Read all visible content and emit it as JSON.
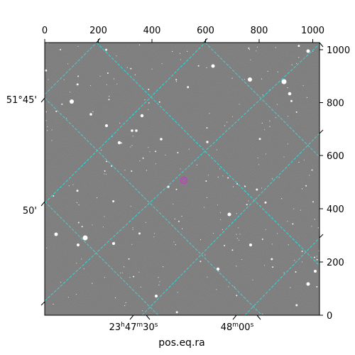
{
  "image": {
    "description_kind": "astronomical sky image with WCS grid",
    "background_color": "#7a7a7a",
    "grid_color": "#38d6d6",
    "marker_color": "#c040c0"
  },
  "axes": {
    "x_label": "pos.eq.ra",
    "top_ticks": [
      "0",
      "200",
      "400",
      "600",
      "800",
      "1000"
    ],
    "right_ticks": [
      "0",
      "200",
      "400",
      "600",
      "800",
      "1000"
    ],
    "bottom_ticks": [
      {
        "h": "23",
        "m": "47",
        "s": "30",
        "label_parts": [
          "23",
          "h",
          "47",
          "m",
          "30",
          "s"
        ]
      },
      {
        "label_parts": [
          "48",
          "m",
          "00",
          "s"
        ]
      }
    ],
    "left_ticks": [
      "51°45'",
      "50'"
    ]
  }
}
